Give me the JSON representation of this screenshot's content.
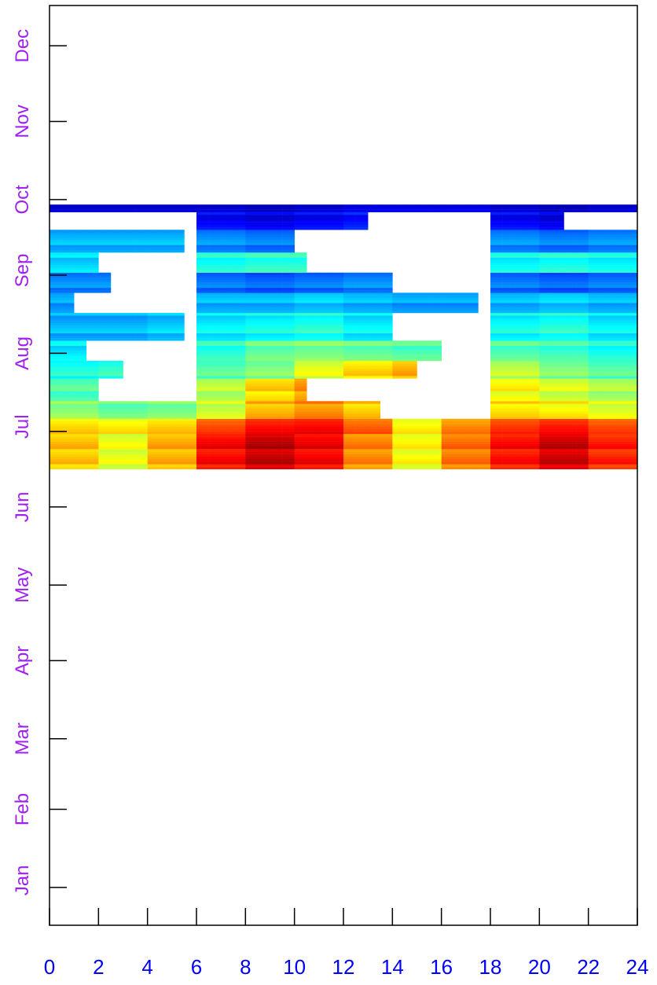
{
  "chart_data": {
    "type": "heatmap",
    "title": "",
    "xlabel": "",
    "ylabel": "",
    "x_tick_labels": [
      "0",
      "2",
      "4",
      "6",
      "8",
      "10",
      "12",
      "14",
      "16",
      "18",
      "20",
      "22",
      "24"
    ],
    "y_tick_labels": [
      "Jan",
      "Feb",
      "Mar",
      "Apr",
      "May",
      "Jun",
      "Jul",
      "Aug",
      "Sep",
      "Oct",
      "Nov",
      "Dec"
    ],
    "xlim": [
      0,
      24
    ],
    "ylim": [
      0,
      365
    ],
    "x_label_color": "#0000ff",
    "y_label_color": "#a020f0",
    "colorscale": [
      "#00007f",
      "#0000ff",
      "#007fff",
      "#00ffff",
      "#7fff7f",
      "#ffff00",
      "#ff7f00",
      "#ff0000",
      "#7f0000"
    ],
    "value_range": [
      0,
      1
    ],
    "background": "#ffffff",
    "frame_color": "#000000",
    "row_bands": [
      {
        "date": "2014-07-01",
        "end_date": "2014-07-14",
        "hour_ranges": [
          [
            0,
            24
          ]
        ],
        "levels": [
          0.68,
          0.6,
          0.7,
          0.87,
          0.93,
          0.88,
          0.74,
          0.62,
          0.76,
          0.86,
          0.92,
          0.84,
          0.72
        ]
      },
      {
        "date": "2014-07-15",
        "end_date": "2014-07-20",
        "hour_ranges": [
          [
            0,
            24
          ]
        ],
        "levels": [
          0.66,
          0.64,
          0.67,
          0.8,
          0.86,
          0.87,
          0.78,
          0.63,
          0.74,
          0.82,
          0.85,
          0.8,
          0.7
        ]
      },
      {
        "date": "2014-07-21",
        "end_date": "2014-07-27",
        "hour_ranges": [
          [
            0,
            13.5
          ],
          [
            18,
            24
          ]
        ],
        "levels": [
          0.52,
          0.48,
          0.5,
          0.58,
          0.7,
          0.74,
          0.68,
          0.6,
          0.62,
          0.66,
          0.64,
          0.6,
          0.56
        ]
      },
      {
        "date": "2014-07-28",
        "end_date": "2014-08-05",
        "hour_ranges": [
          [
            0,
            2
          ],
          [
            6,
            10.5
          ],
          [
            18,
            24
          ]
        ],
        "levels": [
          0.45,
          0.44,
          0.46,
          0.55,
          0.66,
          0.72,
          0.72,
          0.7,
          0.66,
          0.62,
          0.58,
          0.54,
          0.5
        ]
      },
      {
        "date": "2014-08-06",
        "end_date": "2014-08-12",
        "hour_ranges": [
          [
            0,
            3
          ],
          [
            6,
            15
          ],
          [
            18,
            24
          ]
        ],
        "levels": [
          0.4,
          0.42,
          0.44,
          0.46,
          0.5,
          0.6,
          0.66,
          0.7,
          0.68,
          0.56,
          0.5,
          0.46,
          0.42
        ]
      },
      {
        "date": "2014-08-13",
        "end_date": "2014-08-20",
        "hour_ranges": [
          [
            0,
            1.5
          ],
          [
            6,
            16
          ],
          [
            18,
            24
          ]
        ],
        "levels": [
          0.36,
          0.36,
          0.38,
          0.42,
          0.48,
          0.5,
          0.48,
          0.46,
          0.44,
          0.46,
          0.44,
          0.4,
          0.38
        ]
      },
      {
        "date": "2014-08-21",
        "end_date": "2014-08-31",
        "hour_ranges": [
          [
            0,
            5.5
          ],
          [
            6,
            14
          ],
          [
            18,
            24
          ]
        ],
        "levels": [
          0.3,
          0.3,
          0.32,
          0.36,
          0.38,
          0.4,
          0.36,
          0.34,
          0.33,
          0.38,
          0.4,
          0.36,
          0.33
        ]
      },
      {
        "date": "2014-09-01",
        "end_date": "2014-09-08",
        "hour_ranges": [
          [
            0,
            1
          ],
          [
            6,
            17.5
          ],
          [
            18,
            24
          ]
        ],
        "levels": [
          0.28,
          0.28,
          0.3,
          0.3,
          0.3,
          0.32,
          0.3,
          0.28,
          0.28,
          0.3,
          0.32,
          0.3,
          0.28
        ]
      },
      {
        "date": "2014-09-09",
        "end_date": "2014-09-16",
        "hour_ranges": [
          [
            0,
            2.5
          ],
          [
            6,
            14
          ],
          [
            18,
            24
          ]
        ],
        "levels": [
          0.26,
          0.26,
          0.28,
          0.24,
          0.22,
          0.24,
          0.26,
          0.28,
          0.28,
          0.24,
          0.22,
          0.24,
          0.26
        ]
      },
      {
        "date": "2014-09-17",
        "end_date": "2014-09-24",
        "hour_ranges": [
          [
            0,
            2
          ],
          [
            6,
            10.5
          ],
          [
            18,
            24
          ]
        ],
        "levels": [
          0.34,
          0.34,
          0.36,
          0.4,
          0.42,
          0.42,
          0.4,
          0.38,
          0.36,
          0.38,
          0.4,
          0.38,
          0.36
        ]
      },
      {
        "date": "2014-09-25",
        "end_date": "2014-10-03",
        "hour_ranges": [
          [
            0,
            5.5
          ],
          [
            6,
            10
          ],
          [
            18,
            24
          ]
        ],
        "levels": [
          0.3,
          0.3,
          0.3,
          0.26,
          0.24,
          0.24,
          0.26,
          0.28,
          0.3,
          0.26,
          0.24,
          0.26,
          0.28
        ]
      },
      {
        "date": "2014-10-04",
        "end_date": "2014-10-10",
        "hour_ranges": [
          [
            6,
            13
          ],
          [
            18,
            21
          ]
        ],
        "levels": [
          0.16,
          0.14,
          0.14,
          0.12,
          0.1,
          0.12,
          0.14,
          0.16,
          0.16,
          0.12,
          0.1,
          0.12,
          0.14
        ]
      },
      {
        "date": "2014-10-11",
        "end_date": "2014-10-13",
        "hour_ranges": [
          [
            0,
            24
          ]
        ],
        "levels": [
          0.08,
          0.08,
          0.08,
          0.08,
          0.06,
          0.08,
          0.1,
          0.1,
          0.1,
          0.08,
          0.06,
          0.08,
          0.08
        ]
      }
    ]
  }
}
